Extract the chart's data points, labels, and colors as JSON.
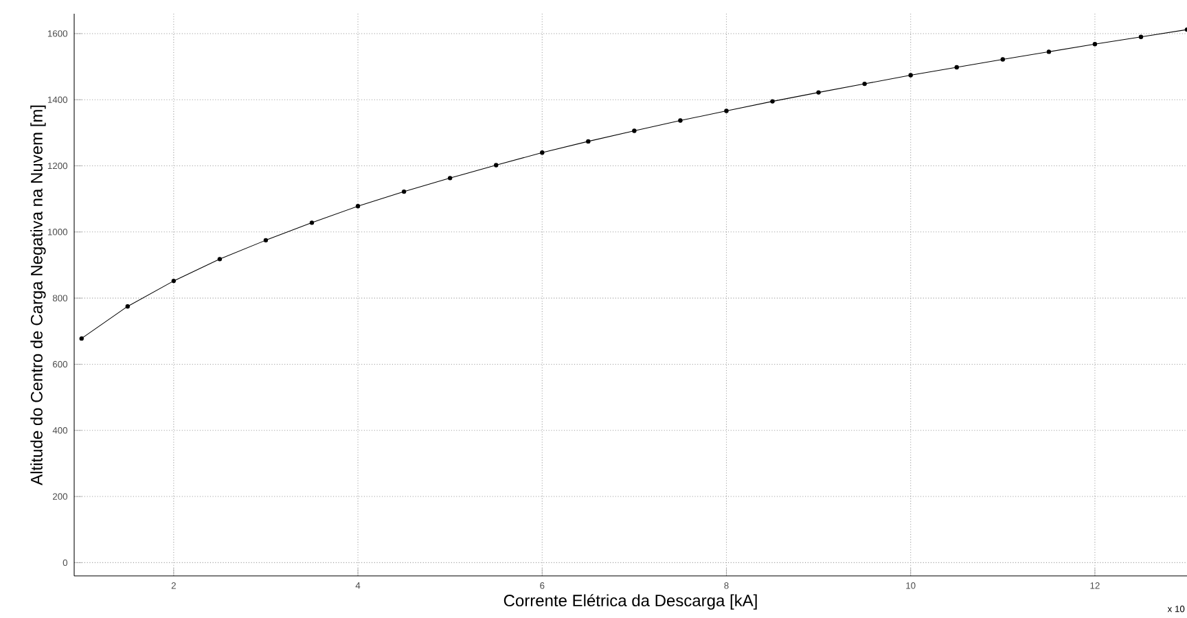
{
  "chart_data": {
    "type": "line",
    "xlabel": "Corrente Elétrica da Descarga [kA]",
    "ylabel": "Altitude do Centro de Carga Negativa na Nuvem [m]",
    "annotations": [
      "x 10"
    ],
    "x": [
      1,
      1.5,
      2,
      2.5,
      3,
      3.5,
      4,
      4.5,
      5,
      5.5,
      6,
      6.5,
      7,
      7.5,
      8,
      8.5,
      9,
      9.5,
      10,
      10.5,
      11,
      11.5,
      12,
      12.5,
      13
    ],
    "series": [
      {
        "color": "#000000",
        "values": [
          678,
          775,
          852,
          918,
          975,
          1028,
          1078,
          1122,
          1163,
          1202,
          1240,
          1274,
          1306,
          1337,
          1366,
          1395,
          1422,
          1448,
          1474,
          1498,
          1522,
          1545,
          1568,
          1590,
          1612
        ]
      }
    ],
    "xlim": [
      0.92,
      13
    ],
    "ylim": [
      -40,
      1660
    ],
    "xticks": [
      2,
      4,
      6,
      8,
      10,
      12
    ],
    "yticks": [
      0,
      200,
      400,
      600,
      800,
      1000,
      1200,
      1400,
      1600
    ],
    "grid": true,
    "marker": "circle",
    "line_style": "solid"
  }
}
